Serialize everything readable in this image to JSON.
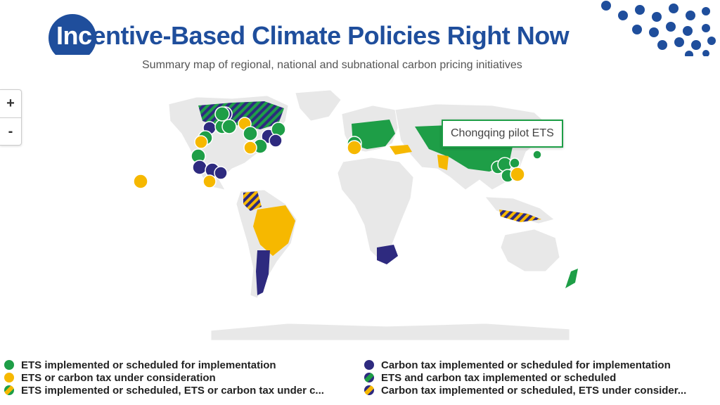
{
  "title": {
    "highlight": "Inc",
    "rest": "entive-Based Climate Policies Right Now"
  },
  "subtitle": "Summary map of regional, national and subnational carbon pricing initiatives",
  "zoom": {
    "in_label": "+",
    "out_label": "-"
  },
  "tooltip": "Chongqing pilot ETS",
  "colors": {
    "ets": "#1e9e47",
    "consideration": "#f6b800",
    "tax": "#2e2a7f",
    "land": "#e8e8e8",
    "brand": "#1f4e9c"
  },
  "legend": {
    "left": [
      {
        "label": "ETS implemented or scheduled for implementation",
        "swatch": "ets"
      },
      {
        "label": "ETS or carbon tax under consideration",
        "swatch": "consideration"
      },
      {
        "label": "ETS implemented or scheduled, ETS or carbon tax under c...",
        "swatch": "ets-consideration"
      }
    ],
    "right": [
      {
        "label": "Carbon tax implemented or scheduled for implementation",
        "swatch": "tax"
      },
      {
        "label": "ETS and carbon tax implemented or scheduled",
        "swatch": "ets-tax"
      },
      {
        "label": "Carbon tax implemented or scheduled, ETS under consider...",
        "swatch": "tax-consideration"
      }
    ]
  }
}
